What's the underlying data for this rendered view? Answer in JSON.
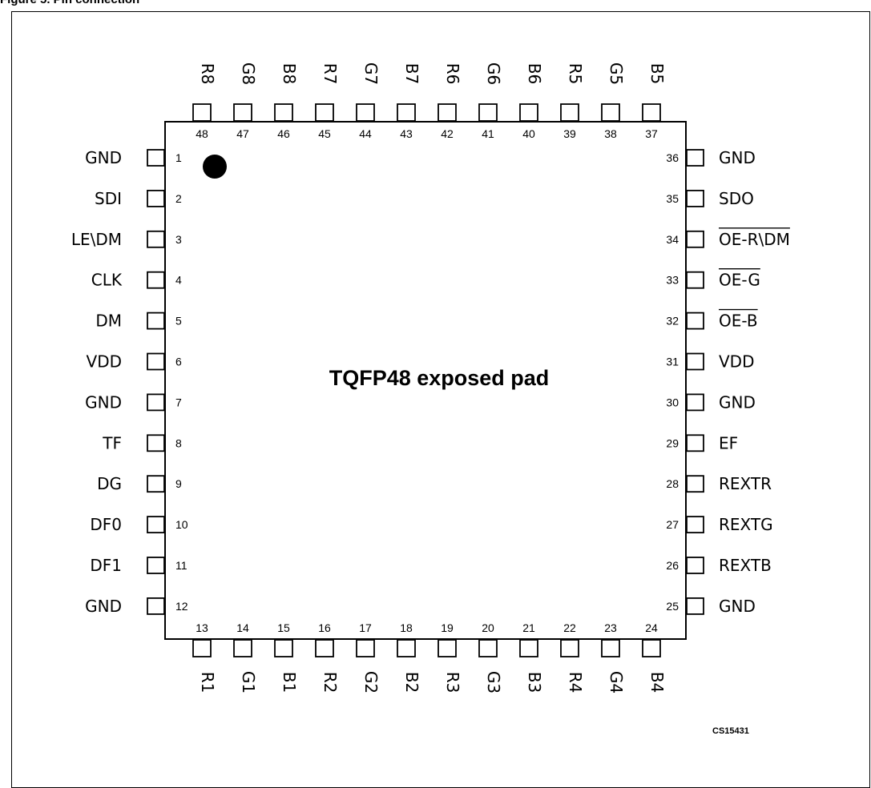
{
  "figure": {
    "caption": "Figure 5.   Pin connection",
    "package_label": "TQFP48 exposed pad",
    "drawing_code": "CS15431"
  },
  "pins": {
    "left": [
      {
        "num": "1",
        "name": "GND"
      },
      {
        "num": "2",
        "name": "SDI"
      },
      {
        "num": "3",
        "name": "LE\\DM"
      },
      {
        "num": "4",
        "name": "CLK"
      },
      {
        "num": "5",
        "name": "DM"
      },
      {
        "num": "6",
        "name": "VDD"
      },
      {
        "num": "7",
        "name": "GND"
      },
      {
        "num": "8",
        "name": "TF"
      },
      {
        "num": "9",
        "name": "DG"
      },
      {
        "num": "10",
        "name": "DF0"
      },
      {
        "num": "11",
        "name": "DF1"
      },
      {
        "num": "12",
        "name": "GND"
      }
    ],
    "bottom": [
      {
        "num": "13",
        "name": "R1"
      },
      {
        "num": "14",
        "name": "G1"
      },
      {
        "num": "15",
        "name": "B1"
      },
      {
        "num": "16",
        "name": "R2"
      },
      {
        "num": "17",
        "name": "G2"
      },
      {
        "num": "18",
        "name": "B2"
      },
      {
        "num": "19",
        "name": "R3"
      },
      {
        "num": "20",
        "name": "G3"
      },
      {
        "num": "21",
        "name": "B3"
      },
      {
        "num": "22",
        "name": "R4"
      },
      {
        "num": "23",
        "name": "G4"
      },
      {
        "num": "24",
        "name": "B4"
      }
    ],
    "right": [
      {
        "num": "25",
        "name": "GND",
        "overbar": false
      },
      {
        "num": "26",
        "name": "REXTB",
        "overbar": false
      },
      {
        "num": "27",
        "name": "REXTG",
        "overbar": false
      },
      {
        "num": "28",
        "name": "REXTR",
        "overbar": false
      },
      {
        "num": "29",
        "name": "EF",
        "overbar": false
      },
      {
        "num": "30",
        "name": "GND",
        "overbar": false
      },
      {
        "num": "31",
        "name": "VDD",
        "overbar": false
      },
      {
        "num": "32",
        "name": "OE-B",
        "overbar": true
      },
      {
        "num": "33",
        "name": "OE-G",
        "overbar": true
      },
      {
        "num": "34",
        "name": "OE-R\\DM",
        "overbar": true
      },
      {
        "num": "35",
        "name": "SDO",
        "overbar": false
      },
      {
        "num": "36",
        "name": "GND",
        "overbar": false
      }
    ],
    "top": [
      {
        "num": "37",
        "name": "B5"
      },
      {
        "num": "38",
        "name": "G5"
      },
      {
        "num": "39",
        "name": "R5"
      },
      {
        "num": "40",
        "name": "B6"
      },
      {
        "num": "41",
        "name": "G6"
      },
      {
        "num": "42",
        "name": "R6"
      },
      {
        "num": "43",
        "name": "B7"
      },
      {
        "num": "44",
        "name": "G7"
      },
      {
        "num": "45",
        "name": "R7"
      },
      {
        "num": "46",
        "name": "B8"
      },
      {
        "num": "47",
        "name": "G8"
      },
      {
        "num": "48",
        "name": "R8"
      }
    ]
  }
}
